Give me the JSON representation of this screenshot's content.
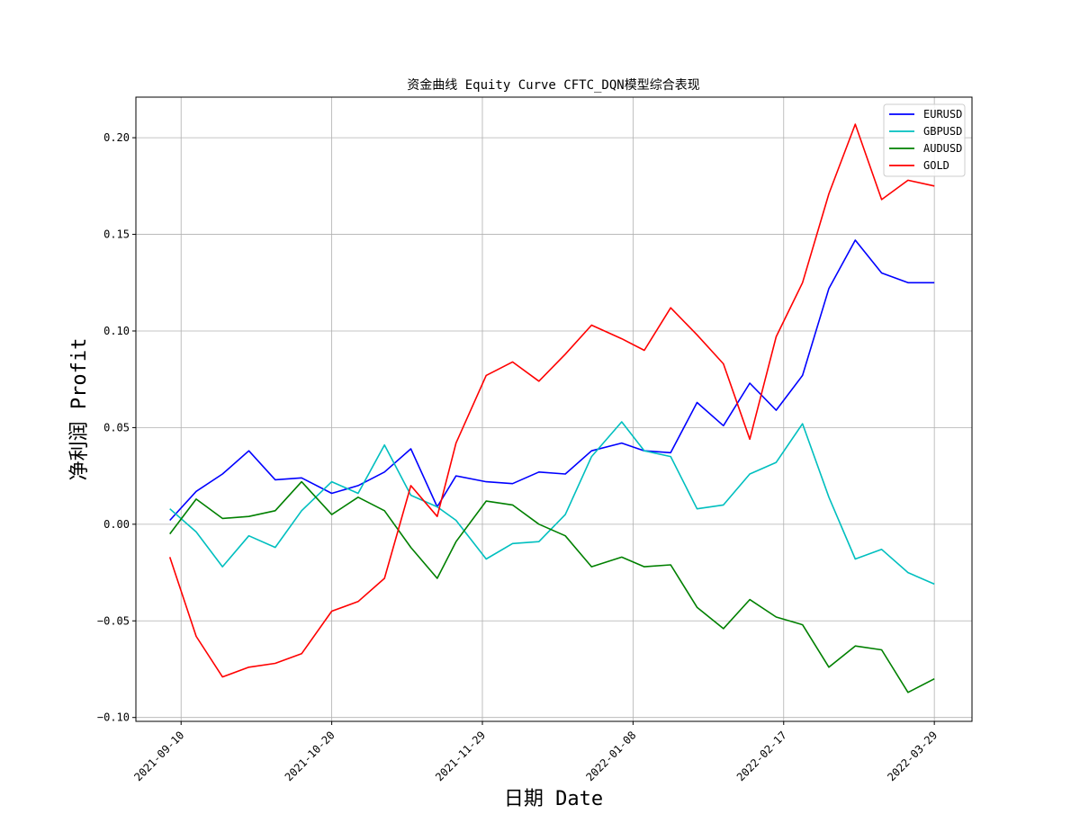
{
  "chart_data": {
    "type": "line",
    "title": "资金曲线 Equity Curve CFTC_DQN模型综合表现",
    "xlabel": "日期 Date",
    "ylabel": "净利润 Profit",
    "x_ticks": [
      "2021-09-10",
      "2021-10-20",
      "2021-11-29",
      "2022-01-08",
      "2022-02-17",
      "2022-03-29"
    ],
    "y_ticks": [
      "0.20",
      "0.15",
      "0.10",
      "0.05",
      "0.00",
      "−0.05",
      "−0.10"
    ],
    "y_tick_values": [
      0.2,
      0.15,
      0.1,
      0.05,
      0.0,
      -0.05,
      -0.1
    ],
    "xlim": [
      "2021-08-29",
      "2022-04-08"
    ],
    "ylim": [
      -0.102,
      0.221
    ],
    "grid": true,
    "legend_position": "top-right",
    "x": [
      "2021-09-07",
      "2021-09-14",
      "2021-09-21",
      "2021-09-28",
      "2021-10-05",
      "2021-10-12",
      "2021-10-20",
      "2021-10-27",
      "2021-11-03",
      "2021-11-10",
      "2021-11-17",
      "2021-11-22",
      "2021-11-30",
      "2021-12-07",
      "2021-12-14",
      "2021-12-21",
      "2021-12-28",
      "2022-01-05",
      "2022-01-11",
      "2022-01-18",
      "2022-01-25",
      "2022-02-01",
      "2022-02-08",
      "2022-02-15",
      "2022-02-22",
      "2022-03-01",
      "2022-03-08",
      "2022-03-15",
      "2022-03-22",
      "2022-03-29"
    ],
    "series": [
      {
        "name": "EURUSD",
        "color": "#0000ff",
        "values": [
          0.002,
          0.017,
          0.026,
          0.038,
          0.023,
          0.024,
          0.016,
          0.02,
          0.027,
          0.039,
          0.009,
          0.025,
          0.022,
          0.021,
          0.027,
          0.026,
          0.038,
          0.042,
          0.038,
          0.037,
          0.063,
          0.051,
          0.073,
          0.059,
          0.077,
          0.122,
          0.147,
          0.13,
          0.125,
          0.125
        ]
      },
      {
        "name": "GBPUSD",
        "color": "#00bfbf",
        "values": [
          0.008,
          -0.004,
          -0.022,
          -0.006,
          -0.012,
          0.007,
          0.022,
          0.016,
          0.041,
          0.015,
          0.009,
          0.002,
          -0.018,
          -0.01,
          -0.009,
          0.005,
          0.035,
          0.053,
          0.038,
          0.035,
          0.008,
          0.01,
          0.026,
          0.032,
          0.052,
          0.014,
          -0.018,
          -0.013,
          -0.025,
          -0.031
        ]
      },
      {
        "name": "AUDUSD",
        "color": "#008000",
        "values": [
          -0.005,
          0.013,
          0.003,
          0.004,
          0.007,
          0.022,
          0.005,
          0.014,
          0.007,
          -0.012,
          -0.028,
          -0.009,
          0.012,
          0.01,
          0.0,
          -0.006,
          -0.022,
          -0.017,
          -0.022,
          -0.021,
          -0.043,
          -0.054,
          -0.039,
          -0.048,
          -0.052,
          -0.074,
          -0.063,
          -0.065,
          -0.087,
          -0.08
        ]
      },
      {
        "name": "GOLD",
        "color": "#ff0000",
        "values": [
          -0.017,
          -0.058,
          -0.079,
          -0.074,
          -0.072,
          -0.067,
          -0.045,
          -0.04,
          -0.028,
          0.02,
          0.004,
          0.042,
          0.077,
          0.084,
          0.074,
          0.088,
          0.103,
          0.096,
          0.09,
          0.112,
          0.098,
          0.083,
          0.044,
          0.097,
          0.125,
          0.171,
          0.207,
          0.168,
          0.178,
          0.175
        ]
      }
    ]
  }
}
